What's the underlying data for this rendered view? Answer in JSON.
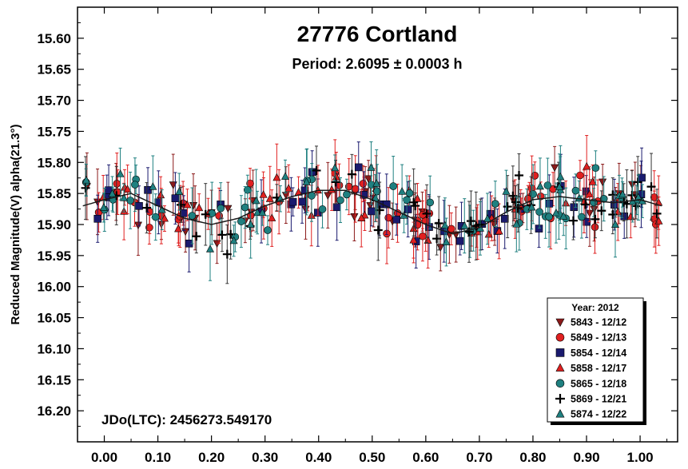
{
  "chart_data": {
    "type": "scatter",
    "title": "27776 Cortland",
    "subtitle": "Period: 2.6095 ± 0.0003 h",
    "xlabel": "",
    "ylabel": "Reduced Magnitude(V) alpha(21.3°)",
    "xlim": [
      -0.05,
      1.07
    ],
    "ylim": [
      16.25,
      15.55
    ],
    "x_ticks": [
      "0.00",
      "0.10",
      "0.20",
      "0.30",
      "0.40",
      "0.50",
      "0.60",
      "0.70",
      "0.80",
      "0.90",
      "1.00"
    ],
    "y_ticks": [
      "15.60",
      "15.65",
      "15.70",
      "15.75",
      "15.80",
      "15.85",
      "15.90",
      "15.95",
      "16.00",
      "16.05",
      "16.10",
      "16.15",
      "16.20"
    ],
    "annotation": "JDo(LTC): 2456273.549170",
    "legend": {
      "title": "Year: 2012",
      "placement": "bottom-right",
      "entries": [
        {
          "label": "5843 - 12/12",
          "marker": "triangle-down",
          "color": "#8b1a1a"
        },
        {
          "label": "5849 - 12/13",
          "marker": "circle",
          "color": "#e02020"
        },
        {
          "label": "5854 - 12/14",
          "marker": "square",
          "color": "#1a1a6e"
        },
        {
          "label": "5858 - 12/17",
          "marker": "triangle-up",
          "color": "#e02020"
        },
        {
          "label": "5865 - 12/18",
          "marker": "circle",
          "color": "#1f8080"
        },
        {
          "label": "5869 - 12/21",
          "marker": "plus",
          "color": "#000000"
        },
        {
          "label": "5874 - 12/22",
          "marker": "triangle-up",
          "color": "#1f8080"
        }
      ]
    },
    "fit_curve": {
      "x": [
        -0.04,
        0.0,
        0.05,
        0.1,
        0.15,
        0.2,
        0.25,
        0.3,
        0.35,
        0.4,
        0.45,
        0.5,
        0.55,
        0.6,
        0.65,
        0.7,
        0.75,
        0.8,
        0.85,
        0.9,
        0.95,
        1.0,
        1.04
      ],
      "y": [
        15.87,
        15.86,
        15.85,
        15.87,
        15.89,
        15.9,
        15.89,
        15.87,
        15.855,
        15.845,
        15.845,
        15.86,
        15.88,
        15.9,
        15.915,
        15.905,
        15.88,
        15.86,
        15.855,
        15.86,
        15.865,
        15.86,
        15.87
      ]
    },
    "series_note": "Each series scatters around the fit curve with ~0.03 mag noise and ~0.04 mag error bars; about 45 points per series across phase -0.04 to 1.04."
  }
}
